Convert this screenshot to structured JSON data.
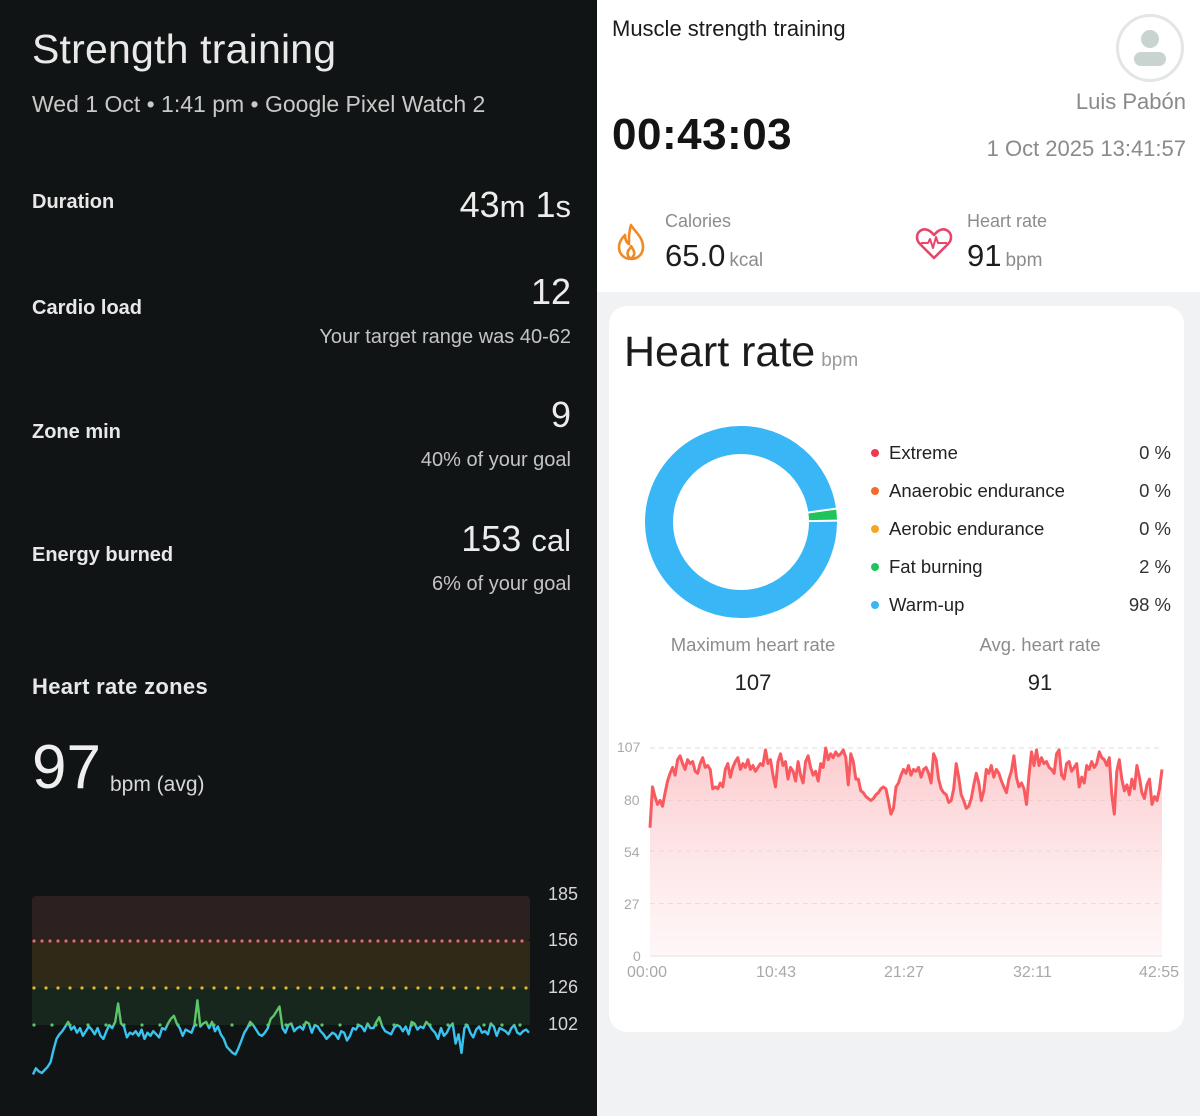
{
  "left_panel": {
    "title": "Strength training",
    "subtitle": "Wed 1 Oct • 1:41 pm • Google Pixel Watch 2",
    "metrics": [
      {
        "label": "Duration",
        "value": "43m 1s",
        "sub": ""
      },
      {
        "label": "Cardio load",
        "value": "12",
        "sub": "Your target range was 40-62"
      },
      {
        "label": "Zone min",
        "value": "9",
        "sub": "40% of your goal"
      },
      {
        "label": "Energy burned",
        "value": "153",
        "unit": "cal",
        "sub": "6% of your goal"
      }
    ],
    "duration": {
      "minutes": "43",
      "m": "m",
      "seconds": "1",
      "s": "s"
    },
    "heart_rate_zones": {
      "title": "Heart rate zones",
      "avg_value": "97",
      "avg_unit": "bpm (avg)",
      "y_ticks": [
        "185",
        "156",
        "126",
        "102"
      ],
      "zone_colors": {
        "peak_band": "#2c2020",
        "cardio_band": "#2f2918",
        "fat_burn_band": "#17271e",
        "peak_line": "#e06b6b",
        "cardio_line": "#e8b43c",
        "fat_burn_line": "#5cc46a",
        "below_line": "#38c4f0"
      }
    }
  },
  "right_panel": {
    "activity_name": "Muscle strength training",
    "duration": "00:43:03",
    "user_name": "Luis Pabón",
    "start_time": "1 Oct 2025 13:41:57",
    "stats": [
      {
        "icon": "flame-icon",
        "label": "Calories",
        "value": "65.0",
        "unit": "kcal",
        "color": "#f08a24"
      },
      {
        "icon": "heart-pulse-icon",
        "label": "Heart rate",
        "value": "91",
        "unit": "bpm",
        "color": "#e8456b"
      }
    ],
    "heart_rate_card": {
      "title": "Heart rate",
      "unit": "bpm",
      "zones": [
        {
          "label": "Extreme",
          "pct": "0 %",
          "color": "#f0394f"
        },
        {
          "label": "Anaerobic endurance",
          "pct": "0 %",
          "color": "#f56b2a"
        },
        {
          "label": "Aerobic endurance",
          "pct": "0 %",
          "color": "#f5a623"
        },
        {
          "label": "Fat burning",
          "pct": "2 %",
          "color": "#1fc45a"
        },
        {
          "label": "Warm-up",
          "pct": "98 %",
          "color": "#38b6f5"
        }
      ],
      "max_label": "Maximum heart rate",
      "max_value": "107",
      "avg_label": "Avg. heart rate",
      "avg_value": "91",
      "line_color": "#f85a60"
    }
  },
  "chart_data": [
    {
      "type": "line",
      "title": "Heart rate zones",
      "xlabel": "",
      "ylabel": "bpm",
      "ylim": [
        60,
        185
      ],
      "y_ticks": [
        185,
        156,
        126,
        102
      ],
      "zone_thresholds": {
        "fat_burn": 102,
        "cardio": 126,
        "peak": 156
      },
      "series": [
        {
          "name": "Heart rate (bpm)",
          "values": [
            70,
            74,
            72,
            71,
            73,
            75,
            78,
            86,
            93,
            96,
            98,
            101,
            104,
            99,
            101,
            97,
            100,
            95,
            98,
            101,
            99,
            96,
            100,
            95,
            93,
            98,
            102,
            100,
            104,
            116,
            103,
            101,
            94,
            97,
            96,
            98,
            95,
            99,
            93,
            97,
            95,
            98,
            96,
            94,
            100,
            99,
            103,
            106,
            108,
            103,
            100,
            95,
            99,
            98,
            97,
            102,
            118,
            101,
            103,
            104,
            100,
            104,
            98,
            101,
            96,
            93,
            88,
            86,
            84,
            83,
            87,
            92,
            97,
            100,
            104,
            102,
            99,
            96,
            95,
            97,
            100,
            106,
            108,
            111,
            114,
            100,
            97,
            102,
            103,
            98,
            100,
            101,
            99,
            104,
            103,
            97,
            102,
            101,
            98,
            96,
            93,
            95,
            97,
            96,
            93,
            98,
            97,
            92,
            95,
            100,
            99,
            102,
            101,
            98,
            103,
            100,
            100,
            104,
            107,
            101,
            98,
            97,
            96,
            100,
            102,
            101,
            98,
            101,
            96,
            104,
            103,
            99,
            101,
            100,
            104,
            102,
            99,
            97,
            93,
            100,
            95,
            97,
            101,
            103,
            90,
            96,
            84,
            100,
            102,
            97,
            94,
            99,
            101,
            97,
            98,
            96,
            103,
            101,
            95,
            100,
            99,
            98,
            96,
            100,
            102,
            97,
            96,
            98,
            99,
            97
          ]
        }
      ]
    },
    {
      "type": "pie",
      "title": "Heart rate zones",
      "categories": [
        "Extreme",
        "Anaerobic endurance",
        "Aerobic endurance",
        "Fat burning",
        "Warm-up"
      ],
      "values": [
        0,
        0,
        0,
        2,
        98
      ]
    },
    {
      "type": "area",
      "title": "Heart rate",
      "xlabel": "",
      "ylabel": "bpm",
      "x_ticks": [
        "00:00",
        "10:43",
        "21:27",
        "32:11",
        "42:55"
      ],
      "y_ticks": [
        0,
        27,
        54,
        80,
        107
      ],
      "ylim": [
        0,
        107
      ],
      "series": [
        {
          "name": "Heart rate (bpm)",
          "values": [
            66,
            87,
            82,
            78,
            80,
            77,
            84,
            90,
            94,
            97,
            93,
            101,
            103,
            99,
            96,
            101,
            99,
            100,
            95,
            94,
            99,
            102,
            97,
            98,
            96,
            86,
            87,
            86,
            89,
            87,
            96,
            99,
            92,
            97,
            100,
            102,
            96,
            99,
            97,
            101,
            96,
            98,
            95,
            97,
            99,
            98,
            106,
            99,
            101,
            93,
            87,
            100,
            104,
            98,
            100,
            91,
            97,
            95,
            90,
            100,
            93,
            89,
            100,
            103,
            97,
            93,
            95,
            90,
            99,
            97,
            107,
            101,
            104,
            102,
            105,
            103,
            104,
            106,
            102,
            88,
            104,
            100,
            91,
            91,
            85,
            84,
            82,
            81,
            80,
            81,
            83,
            84,
            86,
            87,
            86,
            80,
            73,
            76,
            87,
            89,
            93,
            96,
            94,
            98,
            93,
            96,
            95,
            97,
            92,
            96,
            97,
            94,
            89,
            104,
            101,
            91,
            86,
            84,
            83,
            79,
            80,
            86,
            99,
            92,
            83,
            80,
            76,
            77,
            81,
            88,
            94,
            89,
            80,
            85,
            96,
            94,
            98,
            92,
            96,
            94,
            90,
            87,
            84,
            91,
            95,
            103,
            92,
            87,
            89,
            86,
            78,
            93,
            105,
            98,
            106,
            98,
            102,
            99,
            100,
            97,
            96,
            94,
            104,
            106,
            93,
            91,
            99,
            100,
            95,
            97,
            99,
            87,
            92,
            89,
            98,
            96,
            100,
            97,
            99,
            105,
            102,
            101,
            98,
            102,
            83,
            73,
            95,
            101,
            91,
            85,
            88,
            83,
            91,
            86,
            98,
            92,
            84,
            81,
            88,
            91,
            78,
            82,
            80,
            86,
            96
          ]
        }
      ]
    }
  ]
}
